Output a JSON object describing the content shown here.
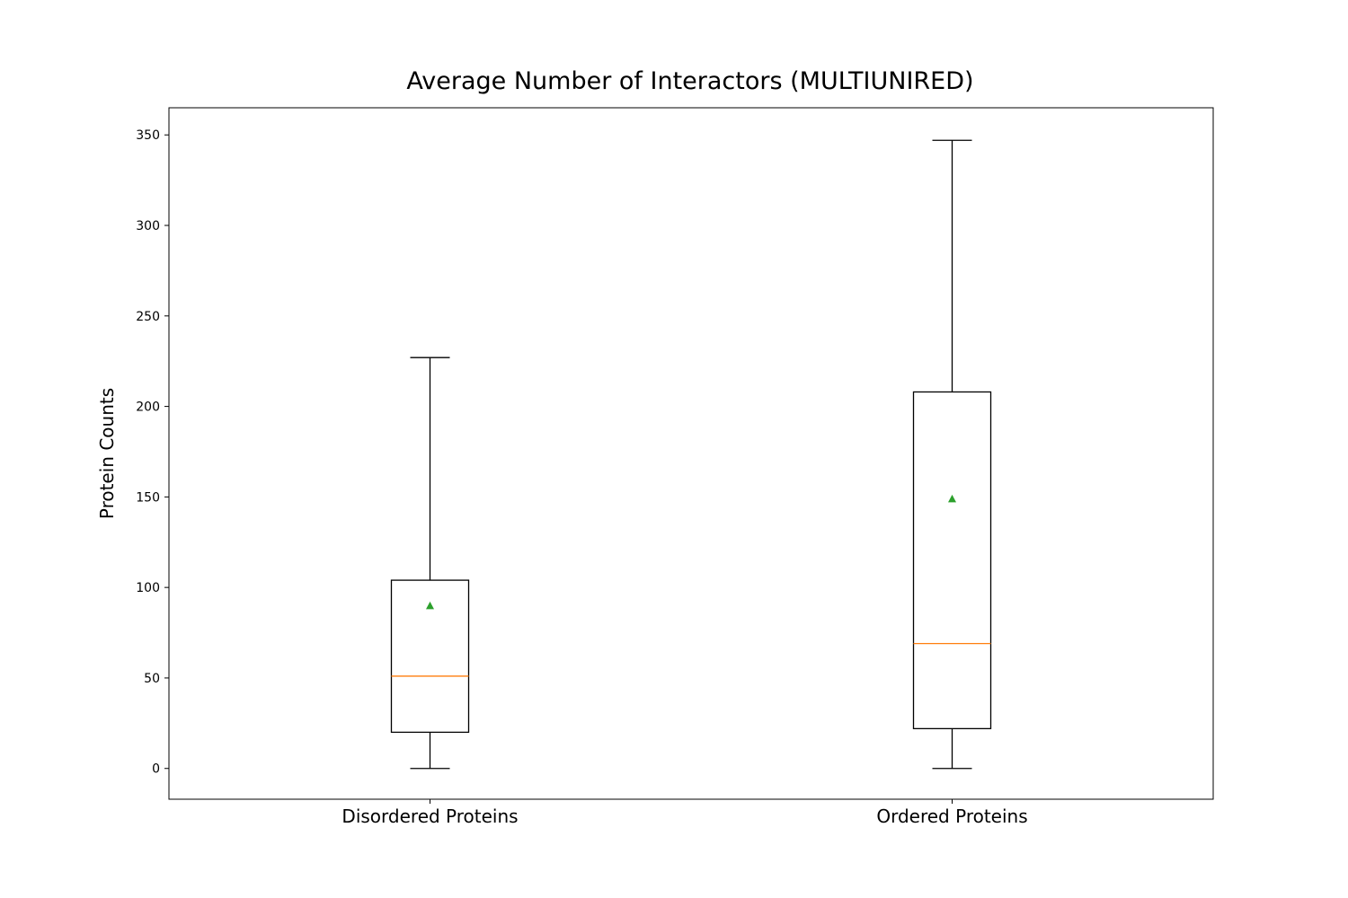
{
  "chart_data": {
    "type": "box",
    "title": "Average Number of Interactors (MULTIUNIRED)",
    "xlabel": "",
    "ylabel": "Protein Counts",
    "ylim": [
      -17,
      365
    ],
    "yticks": [
      0,
      50,
      100,
      150,
      200,
      250,
      300,
      350
    ],
    "grid": false,
    "categories": [
      "Disordered Proteins",
      "Ordered Proteins"
    ],
    "boxes": [
      {
        "whisker_low": 0,
        "q1": 20,
        "median": 51,
        "q3": 104,
        "whisker_high": 227,
        "mean": 90
      },
      {
        "whisker_low": 0,
        "q1": 22,
        "median": 69,
        "q3": 208,
        "whisker_high": 347,
        "mean": 149
      }
    ],
    "colors": {
      "box": "#000000",
      "median": "#ff7f0e",
      "mean": "#2ca02c"
    }
  }
}
